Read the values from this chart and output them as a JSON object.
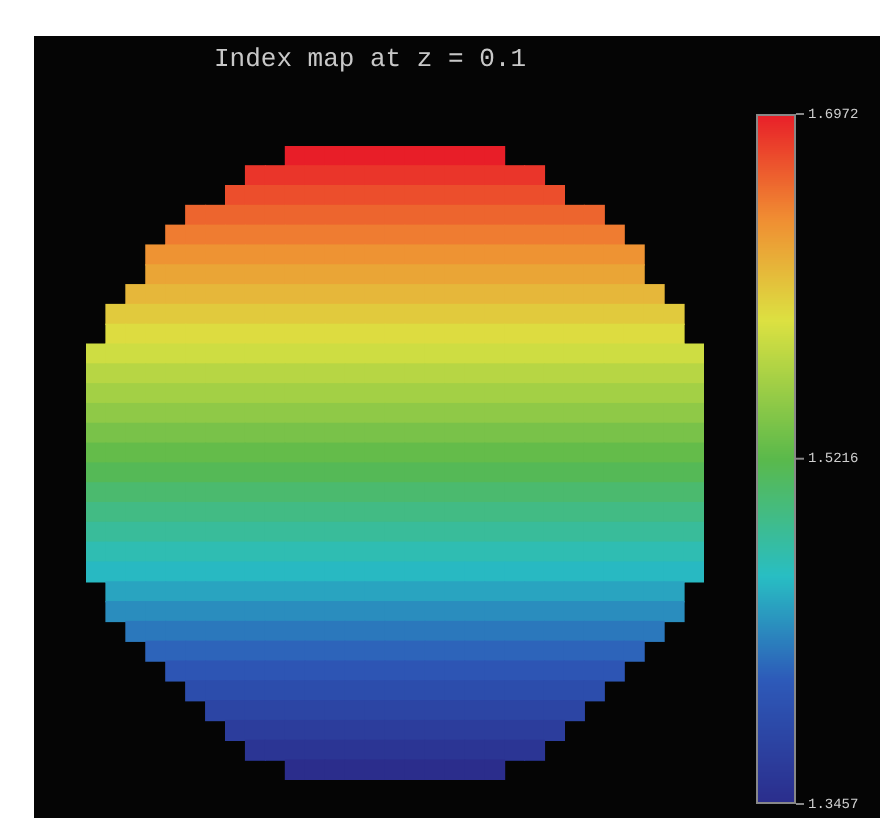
{
  "chart_data": {
    "type": "heatmap",
    "title": "Index map at z = 0.1",
    "categories": [
      null,
      null,
      null,
      null,
      null,
      null,
      null,
      null,
      null,
      null,
      null,
      null,
      null,
      null,
      null,
      null,
      null,
      null,
      null,
      null,
      null,
      null,
      null,
      null,
      null,
      null,
      null,
      null,
      null,
      null,
      null
    ],
    "y_categories": [
      null,
      null,
      null,
      null,
      null,
      null,
      null,
      null,
      null,
      null,
      null,
      null,
      null,
      null,
      null,
      null,
      null,
      null,
      null,
      null,
      null,
      null,
      null,
      null,
      null,
      null,
      null,
      null,
      null,
      null,
      null,
      null
    ],
    "cells": [
      [
        null,
        null,
        null,
        null,
        null,
        null,
        null,
        null,
        null,
        null,
        1.697,
        1.697,
        1.697,
        1.697,
        1.697,
        1.697,
        1.697,
        1.697,
        1.697,
        1.697,
        1.697,
        null,
        null,
        null,
        null,
        null,
        null,
        null,
        null,
        null,
        null
      ],
      [
        null,
        null,
        null,
        null,
        null,
        null,
        null,
        null,
        1.686,
        1.686,
        1.686,
        1.686,
        1.686,
        1.686,
        1.686,
        1.686,
        1.686,
        1.686,
        1.686,
        1.686,
        1.686,
        1.686,
        1.686,
        null,
        null,
        null,
        null,
        null,
        null,
        null,
        null
      ],
      [
        null,
        null,
        null,
        null,
        null,
        null,
        null,
        1.674,
        1.674,
        1.674,
        1.674,
        1.674,
        1.674,
        1.674,
        1.674,
        1.674,
        1.674,
        1.674,
        1.674,
        1.674,
        1.674,
        1.674,
        1.674,
        1.674,
        null,
        null,
        null,
        null,
        null,
        null,
        null
      ],
      [
        null,
        null,
        null,
        null,
        null,
        1.663,
        1.663,
        1.663,
        1.663,
        1.663,
        1.663,
        1.663,
        1.663,
        1.663,
        1.663,
        1.663,
        1.663,
        1.663,
        1.663,
        1.663,
        1.663,
        1.663,
        1.663,
        1.663,
        1.663,
        1.663,
        null,
        null,
        null,
        null,
        null
      ],
      [
        null,
        null,
        null,
        null,
        1.652,
        1.652,
        1.652,
        1.652,
        1.652,
        1.652,
        1.652,
        1.652,
        1.652,
        1.652,
        1.652,
        1.652,
        1.652,
        1.652,
        1.652,
        1.652,
        1.652,
        1.652,
        1.652,
        1.652,
        1.652,
        1.652,
        1.652,
        null,
        null,
        null,
        null
      ],
      [
        null,
        null,
        null,
        1.64,
        1.64,
        1.64,
        1.64,
        1.64,
        1.64,
        1.64,
        1.64,
        1.64,
        1.64,
        1.64,
        1.64,
        1.64,
        1.64,
        1.64,
        1.64,
        1.64,
        1.64,
        1.64,
        1.64,
        1.64,
        1.64,
        1.64,
        1.64,
        1.64,
        null,
        null,
        null
      ],
      [
        null,
        null,
        null,
        1.629,
        1.629,
        1.629,
        1.629,
        1.629,
        1.629,
        1.629,
        1.629,
        1.629,
        1.629,
        1.629,
        1.629,
        1.629,
        1.629,
        1.629,
        1.629,
        1.629,
        1.629,
        1.629,
        1.629,
        1.629,
        1.629,
        1.629,
        1.629,
        1.629,
        null,
        null,
        null
      ],
      [
        null,
        null,
        1.618,
        1.618,
        1.618,
        1.618,
        1.618,
        1.618,
        1.618,
        1.618,
        1.618,
        1.618,
        1.618,
        1.618,
        1.618,
        1.618,
        1.618,
        1.618,
        1.618,
        1.618,
        1.618,
        1.618,
        1.618,
        1.618,
        1.618,
        1.618,
        1.618,
        1.618,
        1.618,
        null,
        null
      ],
      [
        null,
        1.606,
        1.606,
        1.606,
        1.606,
        1.606,
        1.606,
        1.606,
        1.606,
        1.606,
        1.606,
        1.606,
        1.606,
        1.606,
        1.606,
        1.606,
        1.606,
        1.606,
        1.606,
        1.606,
        1.606,
        1.606,
        1.606,
        1.606,
        1.606,
        1.606,
        1.606,
        1.606,
        1.606,
        1.606,
        null
      ],
      [
        null,
        1.595,
        1.595,
        1.595,
        1.595,
        1.595,
        1.595,
        1.595,
        1.595,
        1.595,
        1.595,
        1.595,
        1.595,
        1.595,
        1.595,
        1.595,
        1.595,
        1.595,
        1.595,
        1.595,
        1.595,
        1.595,
        1.595,
        1.595,
        1.595,
        1.595,
        1.595,
        1.595,
        1.595,
        1.595,
        null
      ],
      [
        1.584,
        1.584,
        1.584,
        1.584,
        1.584,
        1.584,
        1.584,
        1.584,
        1.584,
        1.584,
        1.584,
        1.584,
        1.584,
        1.584,
        1.584,
        1.584,
        1.584,
        1.584,
        1.584,
        1.584,
        1.584,
        1.584,
        1.584,
        1.584,
        1.584,
        1.584,
        1.584,
        1.584,
        1.584,
        1.584,
        1.584
      ],
      [
        1.572,
        1.572,
        1.572,
        1.572,
        1.572,
        1.572,
        1.572,
        1.572,
        1.572,
        1.572,
        1.572,
        1.572,
        1.572,
        1.572,
        1.572,
        1.572,
        1.572,
        1.572,
        1.572,
        1.572,
        1.572,
        1.572,
        1.572,
        1.572,
        1.572,
        1.572,
        1.572,
        1.572,
        1.572,
        1.572,
        1.572
      ],
      [
        1.561,
        1.561,
        1.561,
        1.561,
        1.561,
        1.561,
        1.561,
        1.561,
        1.561,
        1.561,
        1.561,
        1.561,
        1.561,
        1.561,
        1.561,
        1.561,
        1.561,
        1.561,
        1.561,
        1.561,
        1.561,
        1.561,
        1.561,
        1.561,
        1.561,
        1.561,
        1.561,
        1.561,
        1.561,
        1.561,
        1.561
      ],
      [
        1.55,
        1.55,
        1.55,
        1.55,
        1.55,
        1.55,
        1.55,
        1.55,
        1.55,
        1.55,
        1.55,
        1.55,
        1.55,
        1.55,
        1.55,
        1.55,
        1.55,
        1.55,
        1.55,
        1.55,
        1.55,
        1.55,
        1.55,
        1.55,
        1.55,
        1.55,
        1.55,
        1.55,
        1.55,
        1.55,
        1.55
      ],
      [
        1.538,
        1.538,
        1.538,
        1.538,
        1.538,
        1.538,
        1.538,
        1.538,
        1.538,
        1.538,
        1.538,
        1.538,
        1.538,
        1.538,
        1.538,
        1.538,
        1.538,
        1.538,
        1.538,
        1.538,
        1.538,
        1.538,
        1.538,
        1.538,
        1.538,
        1.538,
        1.538,
        1.538,
        1.538,
        1.538,
        1.538
      ],
      [
        1.527,
        1.527,
        1.527,
        1.527,
        1.527,
        1.527,
        1.527,
        1.527,
        1.527,
        1.527,
        1.527,
        1.527,
        1.527,
        1.527,
        1.527,
        1.527,
        1.527,
        1.527,
        1.527,
        1.527,
        1.527,
        1.527,
        1.527,
        1.527,
        1.527,
        1.527,
        1.527,
        1.527,
        1.527,
        1.527,
        1.527
      ],
      [
        1.516,
        1.516,
        1.516,
        1.516,
        1.516,
        1.516,
        1.516,
        1.516,
        1.516,
        1.516,
        1.516,
        1.516,
        1.516,
        1.516,
        1.516,
        1.516,
        1.516,
        1.516,
        1.516,
        1.516,
        1.516,
        1.516,
        1.516,
        1.516,
        1.516,
        1.516,
        1.516,
        1.516,
        1.516,
        1.516,
        1.516
      ],
      [
        1.504,
        1.504,
        1.504,
        1.504,
        1.504,
        1.504,
        1.504,
        1.504,
        1.504,
        1.504,
        1.504,
        1.504,
        1.504,
        1.504,
        1.504,
        1.504,
        1.504,
        1.504,
        1.504,
        1.504,
        1.504,
        1.504,
        1.504,
        1.504,
        1.504,
        1.504,
        1.504,
        1.504,
        1.504,
        1.504,
        1.504
      ],
      [
        1.493,
        1.493,
        1.493,
        1.493,
        1.493,
        1.493,
        1.493,
        1.493,
        1.493,
        1.493,
        1.493,
        1.493,
        1.493,
        1.493,
        1.493,
        1.493,
        1.493,
        1.493,
        1.493,
        1.493,
        1.493,
        1.493,
        1.493,
        1.493,
        1.493,
        1.493,
        1.493,
        1.493,
        1.493,
        1.493,
        1.493
      ],
      [
        1.482,
        1.482,
        1.482,
        1.482,
        1.482,
        1.482,
        1.482,
        1.482,
        1.482,
        1.482,
        1.482,
        1.482,
        1.482,
        1.482,
        1.482,
        1.482,
        1.482,
        1.482,
        1.482,
        1.482,
        1.482,
        1.482,
        1.482,
        1.482,
        1.482,
        1.482,
        1.482,
        1.482,
        1.482,
        1.482,
        1.482
      ],
      [
        1.47,
        1.47,
        1.47,
        1.47,
        1.47,
        1.47,
        1.47,
        1.47,
        1.47,
        1.47,
        1.47,
        1.47,
        1.47,
        1.47,
        1.47,
        1.47,
        1.47,
        1.47,
        1.47,
        1.47,
        1.47,
        1.47,
        1.47,
        1.47,
        1.47,
        1.47,
        1.47,
        1.47,
        1.47,
        1.47,
        1.47
      ],
      [
        1.459,
        1.459,
        1.459,
        1.459,
        1.459,
        1.459,
        1.459,
        1.459,
        1.459,
        1.459,
        1.459,
        1.459,
        1.459,
        1.459,
        1.459,
        1.459,
        1.459,
        1.459,
        1.459,
        1.459,
        1.459,
        1.459,
        1.459,
        1.459,
        1.459,
        1.459,
        1.459,
        1.459,
        1.459,
        1.459,
        1.459
      ],
      [
        null,
        1.448,
        1.448,
        1.448,
        1.448,
        1.448,
        1.448,
        1.448,
        1.448,
        1.448,
        1.448,
        1.448,
        1.448,
        1.448,
        1.448,
        1.448,
        1.448,
        1.448,
        1.448,
        1.448,
        1.448,
        1.448,
        1.448,
        1.448,
        1.448,
        1.448,
        1.448,
        1.448,
        1.448,
        1.448,
        null
      ],
      [
        null,
        1.436,
        1.436,
        1.436,
        1.436,
        1.436,
        1.436,
        1.436,
        1.436,
        1.436,
        1.436,
        1.436,
        1.436,
        1.436,
        1.436,
        1.436,
        1.436,
        1.436,
        1.436,
        1.436,
        1.436,
        1.436,
        1.436,
        1.436,
        1.436,
        1.436,
        1.436,
        1.436,
        1.436,
        1.436,
        null
      ],
      [
        null,
        null,
        1.425,
        1.425,
        1.425,
        1.425,
        1.425,
        1.425,
        1.425,
        1.425,
        1.425,
        1.425,
        1.425,
        1.425,
        1.425,
        1.425,
        1.425,
        1.425,
        1.425,
        1.425,
        1.425,
        1.425,
        1.425,
        1.425,
        1.425,
        1.425,
        1.425,
        1.425,
        1.425,
        null,
        null
      ],
      [
        null,
        null,
        null,
        1.414,
        1.414,
        1.414,
        1.414,
        1.414,
        1.414,
        1.414,
        1.414,
        1.414,
        1.414,
        1.414,
        1.414,
        1.414,
        1.414,
        1.414,
        1.414,
        1.414,
        1.414,
        1.414,
        1.414,
        1.414,
        1.414,
        1.414,
        1.414,
        1.414,
        null,
        null,
        null
      ],
      [
        null,
        null,
        null,
        null,
        1.402,
        1.402,
        1.402,
        1.402,
        1.402,
        1.402,
        1.402,
        1.402,
        1.402,
        1.402,
        1.402,
        1.402,
        1.402,
        1.402,
        1.402,
        1.402,
        1.402,
        1.402,
        1.402,
        1.402,
        1.402,
        1.402,
        1.402,
        null,
        null,
        null,
        null
      ],
      [
        null,
        null,
        null,
        null,
        null,
        1.391,
        1.391,
        1.391,
        1.391,
        1.391,
        1.391,
        1.391,
        1.391,
        1.391,
        1.391,
        1.391,
        1.391,
        1.391,
        1.391,
        1.391,
        1.391,
        1.391,
        1.391,
        1.391,
        1.391,
        1.391,
        null,
        null,
        null,
        null,
        null
      ],
      [
        null,
        null,
        null,
        null,
        null,
        null,
        1.38,
        1.38,
        1.38,
        1.38,
        1.38,
        1.38,
        1.38,
        1.38,
        1.38,
        1.38,
        1.38,
        1.38,
        1.38,
        1.38,
        1.38,
        1.38,
        1.38,
        1.38,
        1.38,
        null,
        null,
        null,
        null,
        null,
        null
      ],
      [
        null,
        null,
        null,
        null,
        null,
        null,
        null,
        1.368,
        1.368,
        1.368,
        1.368,
        1.368,
        1.368,
        1.368,
        1.368,
        1.368,
        1.368,
        1.368,
        1.368,
        1.368,
        1.368,
        1.368,
        1.368,
        1.368,
        null,
        null,
        null,
        null,
        null,
        null,
        null
      ],
      [
        null,
        null,
        null,
        null,
        null,
        null,
        null,
        null,
        1.357,
        1.357,
        1.357,
        1.357,
        1.357,
        1.357,
        1.357,
        1.357,
        1.357,
        1.357,
        1.357,
        1.357,
        1.357,
        1.357,
        1.357,
        null,
        null,
        null,
        null,
        null,
        null,
        null,
        null
      ],
      [
        null,
        null,
        null,
        null,
        null,
        null,
        null,
        null,
        null,
        null,
        1.346,
        1.346,
        1.346,
        1.346,
        1.346,
        1.346,
        1.346,
        1.346,
        1.346,
        1.346,
        1.346,
        null,
        null,
        null,
        null,
        null,
        null,
        null,
        null,
        null,
        null
      ]
    ],
    "clim": [
      1.3457,
      1.6972
    ],
    "cticks": [
      1.3457,
      1.5216,
      1.6972
    ]
  }
}
